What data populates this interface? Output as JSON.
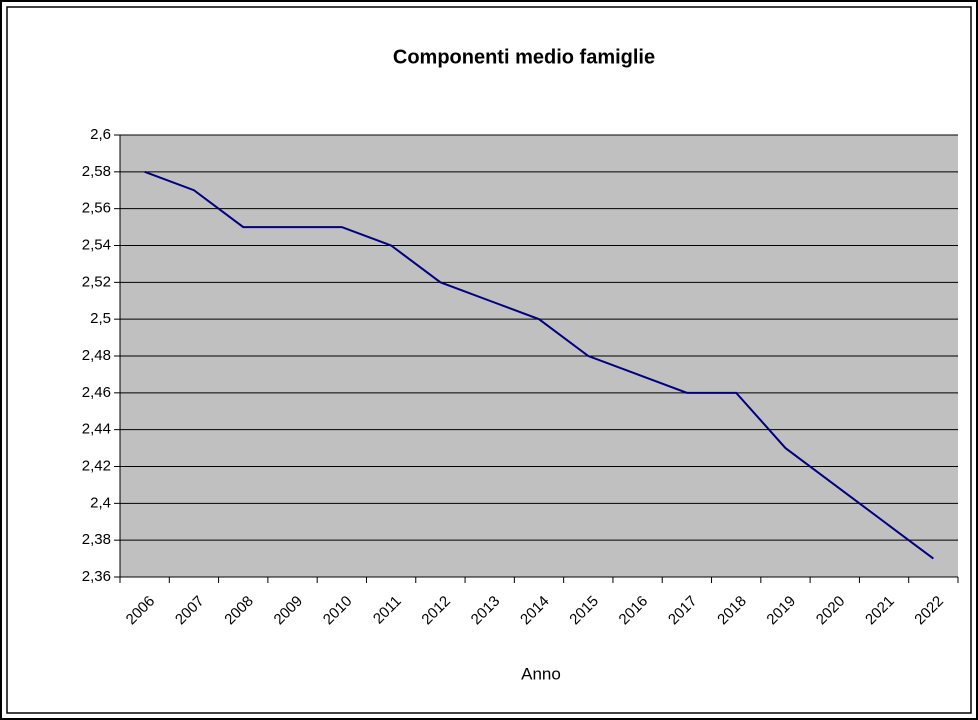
{
  "chart_data": {
    "type": "line",
    "title": "Componenti medio famiglie",
    "x_label": "Anno",
    "categories": [
      "2006",
      "2007",
      "2008",
      "2009",
      "2010",
      "2011",
      "2012",
      "2013",
      "2014",
      "2015",
      "2016",
      "2017",
      "2018",
      "2019",
      "2020",
      "2021",
      "2022"
    ],
    "series": [
      {
        "name": "Componenti medio famiglie",
        "color": "#000080",
        "values": [
          2.58,
          2.57,
          2.55,
          2.55,
          2.55,
          2.54,
          2.52,
          2.51,
          2.5,
          2.48,
          2.47,
          2.46,
          2.46,
          2.43,
          2.41,
          2.39,
          2.37
        ]
      }
    ],
    "ylim": [
      2.36,
      2.6
    ],
    "yticks": [
      {
        "value": 2.36,
        "label": "2,36"
      },
      {
        "value": 2.38,
        "label": "2,38"
      },
      {
        "value": 2.4,
        "label": "2,4"
      },
      {
        "value": 2.42,
        "label": "2,42"
      },
      {
        "value": 2.44,
        "label": "2,44"
      },
      {
        "value": 2.46,
        "label": "2,46"
      },
      {
        "value": 2.48,
        "label": "2,48"
      },
      {
        "value": 2.5,
        "label": "2,5"
      },
      {
        "value": 2.52,
        "label": "2,52"
      },
      {
        "value": 2.54,
        "label": "2,54"
      },
      {
        "value": 2.56,
        "label": "2,56"
      },
      {
        "value": 2.58,
        "label": "2,58"
      },
      {
        "value": 2.6,
        "label": "2,6"
      }
    ],
    "grid": true,
    "plot_background": "#c0c0c0"
  }
}
